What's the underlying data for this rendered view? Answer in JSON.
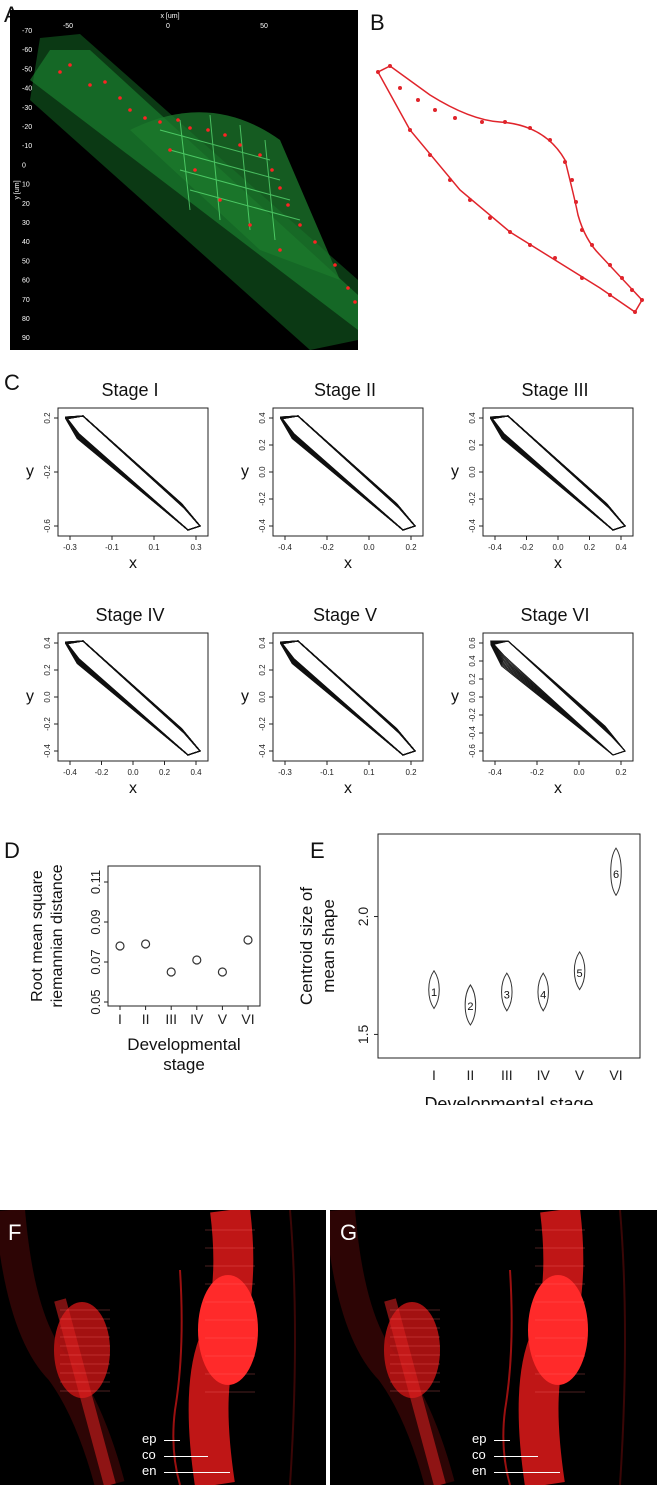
{
  "panels": {
    "A": {
      "label": "A",
      "x_axis_label": "x [um]",
      "y_axis_label": "y [um]",
      "x_ticks": [
        "-50",
        "0",
        "50"
      ],
      "y_ticks": [
        "-70",
        "-60",
        "-50",
        "-40",
        "-30",
        "-20",
        "-10",
        "0",
        "10",
        "20",
        "30",
        "40",
        "50",
        "60",
        "70",
        "80",
        "90"
      ]
    },
    "B": {
      "label": "B"
    },
    "C": {
      "label": "C",
      "stages": [
        {
          "title": "Stage I",
          "xticks": [
            "-0.3",
            "-0.1",
            "0.1",
            "0.3"
          ],
          "yticks": [
            "0.2",
            "-0.2",
            "-0.6"
          ],
          "xlabel": "x",
          "ylabel": "y"
        },
        {
          "title": "Stage II",
          "xticks": [
            "-0.4",
            "-0.2",
            "0.0",
            "0.2"
          ],
          "yticks": [
            "0.4",
            "0.2",
            "0.0",
            "-0.2",
            "-0.4"
          ],
          "xlabel": "x",
          "ylabel": "y"
        },
        {
          "title": "Stage III",
          "xticks": [
            "-0.4",
            "-0.2",
            "0.0",
            "0.2",
            "0.4"
          ],
          "yticks": [
            "0.4",
            "0.2",
            "0.0",
            "-0.2",
            "-0.4"
          ],
          "xlabel": "x",
          "ylabel": "y"
        },
        {
          "title": "Stage IV",
          "xticks": [
            "-0.4",
            "-0.2",
            "0.0",
            "0.2",
            "0.4"
          ],
          "yticks": [
            "0.4",
            "0.2",
            "0.0",
            "-0.2",
            "-0.4"
          ],
          "xlabel": "x",
          "ylabel": "y"
        },
        {
          "title": "Stage V",
          "xticks": [
            "-0.3",
            "-0.1",
            "0.1",
            "0.2"
          ],
          "yticks": [
            "0.4",
            "0.2",
            "0.0",
            "-0.2",
            "-0.4"
          ],
          "xlabel": "x",
          "ylabel": "y"
        },
        {
          "title": "Stage VI",
          "xticks": [
            "-0.4",
            "-0.2",
            "0.0",
            "0.2"
          ],
          "yticks": [
            "0.6",
            "0.4",
            "0.2",
            "0.0",
            "-0.2",
            "-0.4",
            "-0.6"
          ],
          "xlabel": "x",
          "ylabel": "y"
        }
      ]
    },
    "D": {
      "label": "D"
    },
    "E": {
      "label": "E"
    },
    "F": {
      "label": "F",
      "layers": [
        "ep",
        "co",
        "en"
      ]
    },
    "G": {
      "label": "G",
      "layers": [
        "ep",
        "co",
        "en"
      ]
    }
  },
  "chart_data": [
    {
      "type": "scatter",
      "panel": "D",
      "categories": [
        "I",
        "II",
        "III",
        "IV",
        "V",
        "VI"
      ],
      "values": [
        0.078,
        0.079,
        0.065,
        0.071,
        0.065,
        0.081
      ],
      "ylabel_lines": [
        "Root mean square",
        "riemannian distance"
      ],
      "xlabel_lines": [
        "Developmental",
        "stage"
      ],
      "ylim": [
        0.048,
        0.118
      ],
      "yticks": [
        "0.05",
        "0.07",
        "0.09",
        "0.11"
      ]
    },
    {
      "type": "violin",
      "panel": "E",
      "categories": [
        "I",
        "II",
        "III",
        "IV",
        "V",
        "VI"
      ],
      "point_labels": [
        "1",
        "2",
        "3",
        "4",
        "5",
        "6"
      ],
      "centers": [
        1.68,
        1.62,
        1.67,
        1.67,
        1.76,
        2.18
      ],
      "lows": [
        1.61,
        1.54,
        1.6,
        1.6,
        1.69,
        2.09
      ],
      "highs": [
        1.77,
        1.71,
        1.76,
        1.76,
        1.85,
        2.29
      ],
      "ylabel_lines": [
        "Centroid size of",
        "mean shape"
      ],
      "xlabel": "Developmental stage",
      "ylim": [
        1.4,
        2.35
      ],
      "yticks": [
        "1.5",
        "2.0"
      ]
    }
  ]
}
